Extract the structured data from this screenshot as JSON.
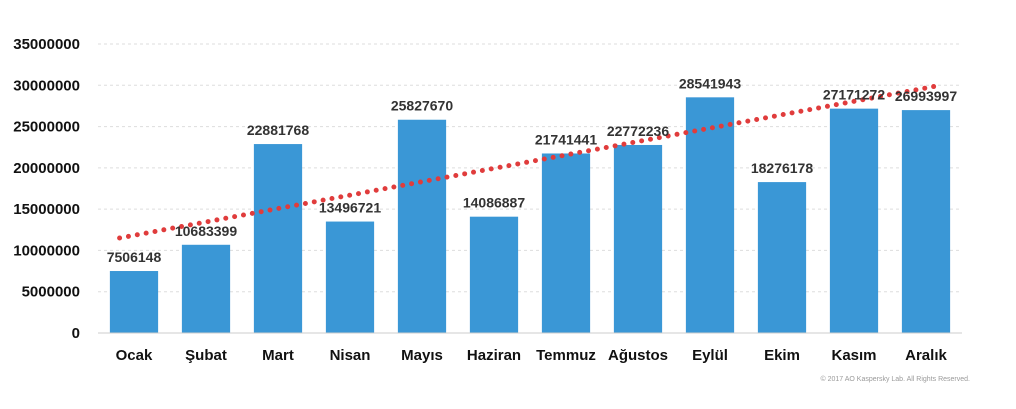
{
  "chart_data": {
    "type": "bar",
    "categories": [
      "Ocak",
      "Şubat",
      "Mart",
      "Nisan",
      "Mayıs",
      "Haziran",
      "Temmuz",
      "Ağustos",
      "Eylül",
      "Ekim",
      "Kasım",
      "Aralık"
    ],
    "values": [
      7506148,
      10683399,
      22881768,
      13496721,
      25827670,
      14086887,
      21741441,
      22772236,
      28541943,
      18276178,
      27171272,
      26993997
    ],
    "value_labels": [
      "7506148",
      "10683399",
      "22881768",
      "13496721",
      "25827670",
      "14086887",
      "21741441",
      "22772236",
      "28541943",
      "18276178",
      "27171272",
      "26993997"
    ],
    "y_ticks": [
      "0",
      "5000000",
      "10000000",
      "15000000",
      "20000000",
      "25000000",
      "30000000",
      "35000000"
    ],
    "ylim": [
      0,
      35000000
    ],
    "grid": true,
    "trendline": {
      "style": "dotted",
      "start": 11500000,
      "end": 30000000
    },
    "colors": {
      "bar": "#3a97d6",
      "trend": "#e03c3c",
      "grid": "#dddddd"
    },
    "title": "",
    "xlabel": "",
    "ylabel": ""
  },
  "footer": {
    "copyright": "© 2017 AO Kaspersky Lab. All Rights Reserved."
  }
}
